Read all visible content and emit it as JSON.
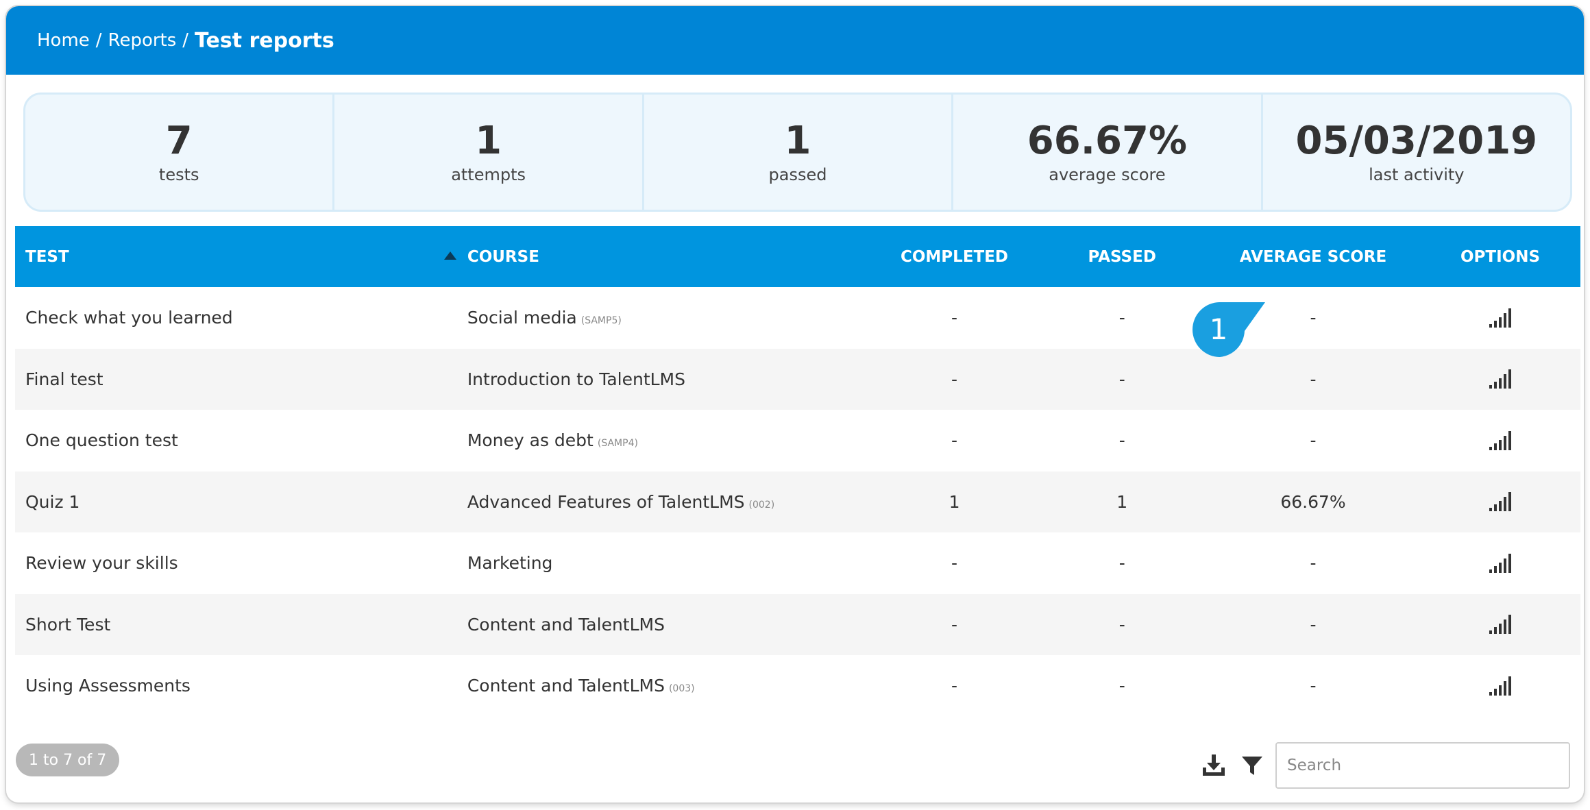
{
  "breadcrumb": {
    "home": "Home",
    "sep1": "/",
    "reports": "Reports",
    "sep2": "/",
    "current": "Test reports"
  },
  "stats": [
    {
      "value": "7",
      "label": "tests"
    },
    {
      "value": "1",
      "label": "attempts"
    },
    {
      "value": "1",
      "label": "passed"
    },
    {
      "value": "66.67%",
      "label": "average score"
    },
    {
      "value": "05/03/2019",
      "label": "last activity"
    }
  ],
  "table": {
    "headers": {
      "test": "TEST",
      "course": "COURSE",
      "completed": "COMPLETED",
      "passed": "PASSED",
      "average_score": "AVERAGE SCORE",
      "options": "OPTIONS"
    },
    "rows": [
      {
        "test": "Check what you learned",
        "course": "Social media",
        "code": "(SAMP5)",
        "completed": "-",
        "passed": "-",
        "average_score": "-"
      },
      {
        "test": "Final test",
        "course": "Introduction to TalentLMS",
        "code": "",
        "completed": "-",
        "passed": "-",
        "average_score": "-"
      },
      {
        "test": "One question test",
        "course": "Money as debt",
        "code": "(SAMP4)",
        "completed": "-",
        "passed": "-",
        "average_score": "-"
      },
      {
        "test": "Quiz 1",
        "course": "Advanced Features of TalentLMS",
        "code": "(002)",
        "completed": "1",
        "passed": "1",
        "average_score": "66.67%"
      },
      {
        "test": "Review your skills",
        "course": "Marketing",
        "code": "",
        "completed": "-",
        "passed": "-",
        "average_score": "-"
      },
      {
        "test": "Short Test",
        "course": "Content and TalentLMS",
        "code": "",
        "completed": "-",
        "passed": "-",
        "average_score": "-"
      },
      {
        "test": "Using Assessments",
        "course": "Content and TalentLMS",
        "code": "(003)",
        "completed": "-",
        "passed": "-",
        "average_score": "-"
      }
    ]
  },
  "callout": {
    "number": "1",
    "color": "#1a9fe0"
  },
  "options_icon": "signal-bars-icon",
  "pagination": {
    "label": "1 to 7 of 7"
  },
  "search": {
    "placeholder": "Search",
    "value": ""
  },
  "tools": {
    "download_icon": "download-icon",
    "filter_icon": "filter-icon"
  },
  "colors": {
    "header": "#0085d6",
    "table_header": "#0095df",
    "stats_bg": "#eef7fd"
  }
}
